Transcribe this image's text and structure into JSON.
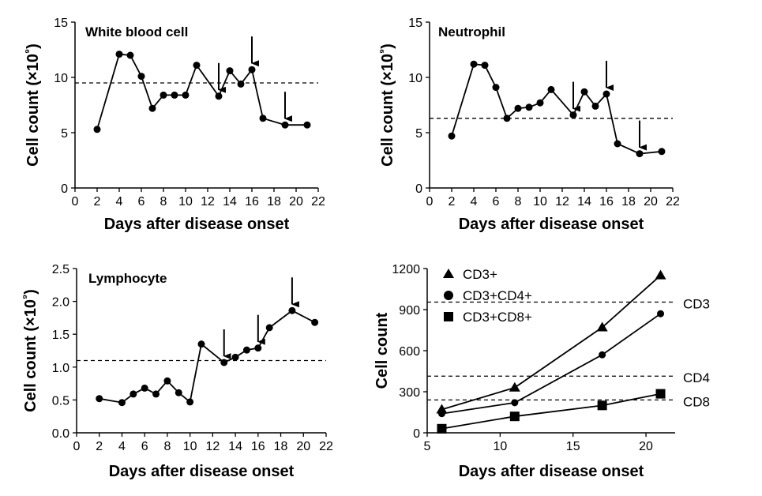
{
  "chart_data": [
    {
      "type": "line",
      "title": "White blood cell",
      "xlabel": "Days after disease onset",
      "ylabel": "Cell count (×10⁹)",
      "xlim": [
        0,
        22
      ],
      "ylim": [
        0,
        15
      ],
      "xticks": [
        "0",
        "2",
        "4",
        "6",
        "8",
        "10",
        "12",
        "14",
        "16",
        "18",
        "20",
        "22"
      ],
      "yticks": [
        "0",
        "5",
        "10",
        "15"
      ],
      "x": [
        2,
        4,
        5,
        6,
        7,
        8,
        9,
        10,
        11,
        13,
        14,
        15,
        16,
        17,
        19,
        21
      ],
      "y": [
        5.3,
        12.1,
        12.0,
        10.1,
        7.2,
        8.4,
        8.4,
        8.4,
        11.1,
        8.3,
        10.6,
        9.4,
        10.7,
        6.3,
        5.7,
        5.7
      ],
      "reference_line": 9.5,
      "arrows_at_x": [
        13,
        16,
        19
      ],
      "grid": false
    },
    {
      "type": "line",
      "title": "Neutrophil",
      "xlabel": "Days after disease onset",
      "ylabel": "Cell count (×10⁹)",
      "xlim": [
        0,
        22
      ],
      "ylim": [
        0,
        15
      ],
      "xticks": [
        "0",
        "2",
        "4",
        "6",
        "8",
        "10",
        "12",
        "14",
        "16",
        "18",
        "20",
        "22"
      ],
      "yticks": [
        "0",
        "5",
        "10",
        "15"
      ],
      "x": [
        2,
        4,
        5,
        6,
        7,
        8,
        9,
        10,
        11,
        13,
        14,
        15,
        16,
        17,
        19,
        21
      ],
      "y": [
        4.7,
        11.2,
        11.1,
        9.1,
        6.3,
        7.2,
        7.3,
        7.7,
        8.9,
        6.6,
        8.7,
        7.4,
        8.5,
        4.0,
        3.1,
        3.3
      ],
      "reference_line": 6.3,
      "arrows_at_x": [
        13,
        16,
        19
      ],
      "grid": false
    },
    {
      "type": "line",
      "title": "Lymphocyte",
      "xlabel": "Days after disease onset",
      "ylabel": "Cell count (×10⁹)",
      "xlim": [
        0,
        22
      ],
      "ylim": [
        0,
        2.5
      ],
      "xticks": [
        "0",
        "2",
        "4",
        "6",
        "8",
        "10",
        "12",
        "14",
        "16",
        "18",
        "20",
        "22"
      ],
      "yticks": [
        "0.0",
        "0.5",
        "1.0",
        "1.5",
        "2.0",
        "2.5"
      ],
      "x": [
        2,
        4,
        5,
        6,
        7,
        8,
        9,
        10,
        11,
        13,
        14,
        15,
        16,
        17,
        19,
        21
      ],
      "y": [
        0.52,
        0.46,
        0.59,
        0.68,
        0.59,
        0.79,
        0.61,
        0.47,
        1.35,
        1.07,
        1.15,
        1.26,
        1.29,
        1.6,
        1.86,
        1.68
      ],
      "reference_line": 1.1,
      "arrows_at_x": [
        13,
        16,
        19
      ],
      "grid": false
    },
    {
      "type": "line",
      "title": "",
      "xlabel": "Days after disease onset",
      "ylabel": "Cell count",
      "xlim": [
        5,
        22
      ],
      "ylim": [
        0,
        1200
      ],
      "xticks": [
        "5",
        "10",
        "15",
        "20"
      ],
      "yticks": [
        "0",
        "300",
        "600",
        "900",
        "1200"
      ],
      "legend_position": "top-left",
      "series": [
        {
          "name": "CD3+",
          "marker": "triangle",
          "x": [
            6,
            11,
            17,
            21
          ],
          "values": [
            170,
            330,
            770,
            1150
          ]
        },
        {
          "name": "CD3+CD4+",
          "marker": "circle",
          "x": [
            6,
            11,
            17,
            21
          ],
          "values": [
            140,
            220,
            570,
            870
          ]
        },
        {
          "name": "CD3+CD8+",
          "marker": "square",
          "x": [
            6,
            11,
            17,
            21
          ],
          "values": [
            30,
            120,
            200,
            285
          ]
        }
      ],
      "reference_lines": [
        {
          "label": "CD3",
          "value": 955
        },
        {
          "label": "CD4",
          "value": 414
        },
        {
          "label": "CD8",
          "value": 240
        }
      ],
      "grid": false
    }
  ]
}
